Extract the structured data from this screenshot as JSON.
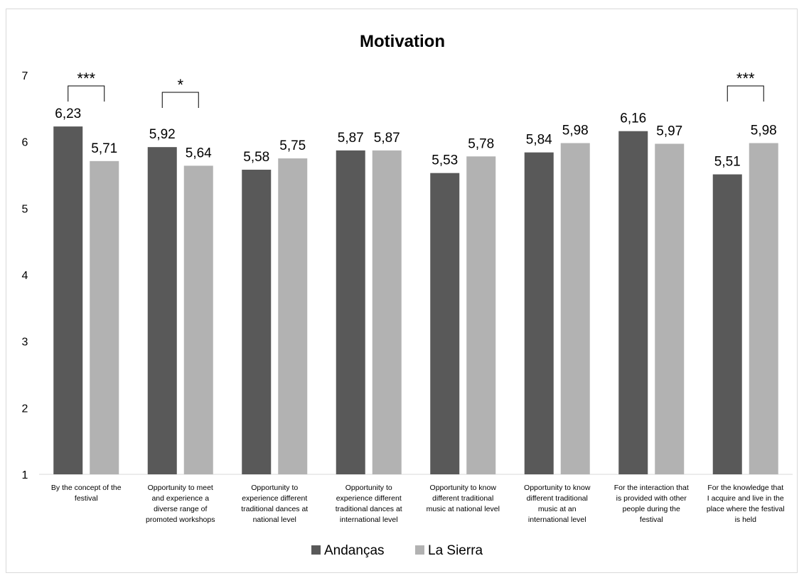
{
  "chart_data": {
    "type": "bar",
    "title": "Motivation",
    "xlabel": "",
    "ylabel": "",
    "ylim": [
      1,
      7
    ],
    "yticks": [
      "1",
      "2",
      "3",
      "4",
      "5",
      "6",
      "7"
    ],
    "grid": false,
    "legend_position": "bottom",
    "categories": [
      [
        "By the concept of the",
        "festival"
      ],
      [
        "Opportunity to meet",
        "and experience a",
        "diverse range of",
        "promoted workshops"
      ],
      [
        "Opportunity to",
        "experience different",
        "traditional dances at",
        "national level"
      ],
      [
        "Opportunity to",
        "experience different",
        "traditional dances at",
        "international level"
      ],
      [
        "Opportunity to know",
        "different traditional",
        "music at national level"
      ],
      [
        "Opportunity to know",
        "different traditional",
        "music at an",
        "international level"
      ],
      [
        "For the interaction that",
        "is provided with other",
        "people during the",
        "festival"
      ],
      [
        "For the knowledge that",
        "I acquire and live in the",
        "place where the festival",
        "is held"
      ]
    ],
    "series": [
      {
        "name": "Andanças",
        "color": "#595959",
        "values": [
          6.23,
          5.92,
          5.58,
          5.87,
          5.53,
          5.84,
          6.16,
          5.51
        ],
        "labels": [
          "6,23",
          "5,92",
          "5,58",
          "5,87",
          "5,53",
          "5,84",
          "6,16",
          "5,51"
        ]
      },
      {
        "name": "La Sierra",
        "color": "#b2b2b2",
        "values": [
          5.71,
          5.64,
          5.75,
          5.87,
          5.78,
          5.98,
          5.97,
          5.98
        ],
        "labels": [
          "5,71",
          "5,64",
          "5,75",
          "5,87",
          "5,78",
          "5,98",
          "5,97",
          "5,98"
        ]
      }
    ],
    "significance": [
      {
        "category_index": 0,
        "label": "***"
      },
      {
        "category_index": 1,
        "label": "*"
      },
      {
        "category_index": 7,
        "label": "***"
      }
    ]
  }
}
